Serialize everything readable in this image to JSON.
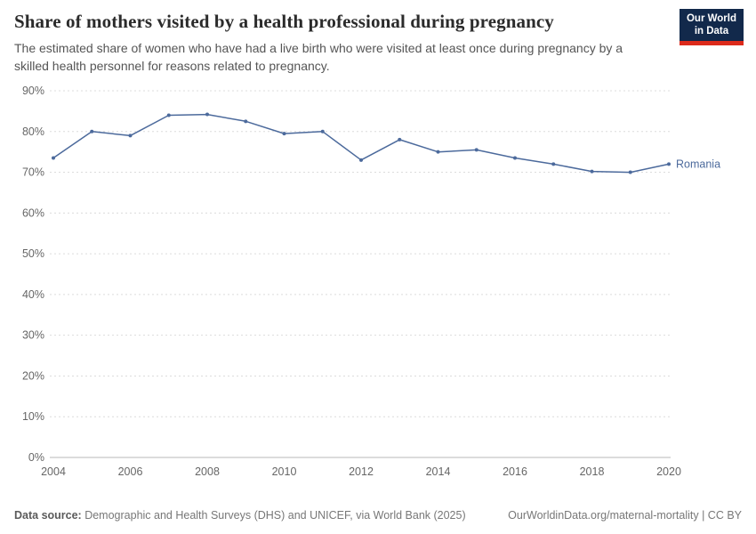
{
  "header": {
    "title": "Share of mothers visited by a health professional during pregnancy",
    "subtitle": "The estimated share of women who have had a live birth who were visited at least once during pregnancy by a skilled health personnel for reasons related to pregnancy.",
    "logo_line1": "Our World",
    "logo_line2": "in Data"
  },
  "chart_data": {
    "type": "line",
    "x": [
      2004,
      2005,
      2006,
      2007,
      2008,
      2009,
      2010,
      2011,
      2012,
      2013,
      2014,
      2015,
      2016,
      2017,
      2018,
      2019,
      2020
    ],
    "series": [
      {
        "name": "Romania",
        "color": "#4C6A9C",
        "values": [
          73.5,
          80,
          79,
          84,
          84.2,
          82.5,
          79.5,
          80,
          73,
          78,
          75,
          75.5,
          73.5,
          72,
          70.2,
          70,
          72
        ]
      }
    ],
    "title": "Share of mothers visited by a health professional during pregnancy",
    "xlabel": "",
    "ylabel": "",
    "xlim": [
      2004,
      2020
    ],
    "ylim": [
      0,
      90
    ],
    "yticks": [
      0,
      10,
      20,
      30,
      40,
      50,
      60,
      70,
      80,
      90
    ],
    "xticks": [
      2004,
      2006,
      2008,
      2010,
      2012,
      2014,
      2016,
      2018,
      2020
    ],
    "grid": "horizontal-dashed",
    "legend_position": "end-of-line",
    "colors": {
      "grid": "#dcdcdc",
      "axis": "#b9b9b9",
      "tick_text": "#666666"
    }
  },
  "footer": {
    "source_label": "Data source:",
    "source_text": " Demographic and Health Surveys (DHS) and UNICEF, via World Bank (2025)",
    "credit": "OurWorldinData.org/maternal-mortality | CC BY"
  }
}
